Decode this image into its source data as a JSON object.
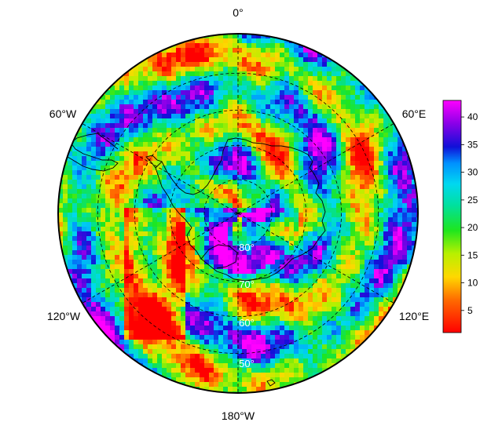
{
  "map": {
    "projection": "south-polar-stereographic",
    "colormap": "rainbow-red-to-magenta",
    "coastline": "Antarctica and southern South America",
    "longitude_labels": {
      "top": "0°",
      "upper_left": "60°W",
      "upper_right": "60°E",
      "lower_left": "120°W",
      "lower_right": "120°E",
      "bottom": "180°W"
    },
    "latitude_labels": [
      "80°",
      "70°",
      "60°",
      "50°"
    ],
    "circle_latitudes": [
      80,
      70,
      60,
      50
    ]
  },
  "colorbar": {
    "min": 1,
    "max": 43,
    "ticks": [
      "5",
      "10",
      "15",
      "20",
      "25",
      "30",
      "35",
      "40"
    ],
    "tick_values": [
      5,
      10,
      15,
      20,
      25,
      30,
      35,
      40
    ]
  }
}
